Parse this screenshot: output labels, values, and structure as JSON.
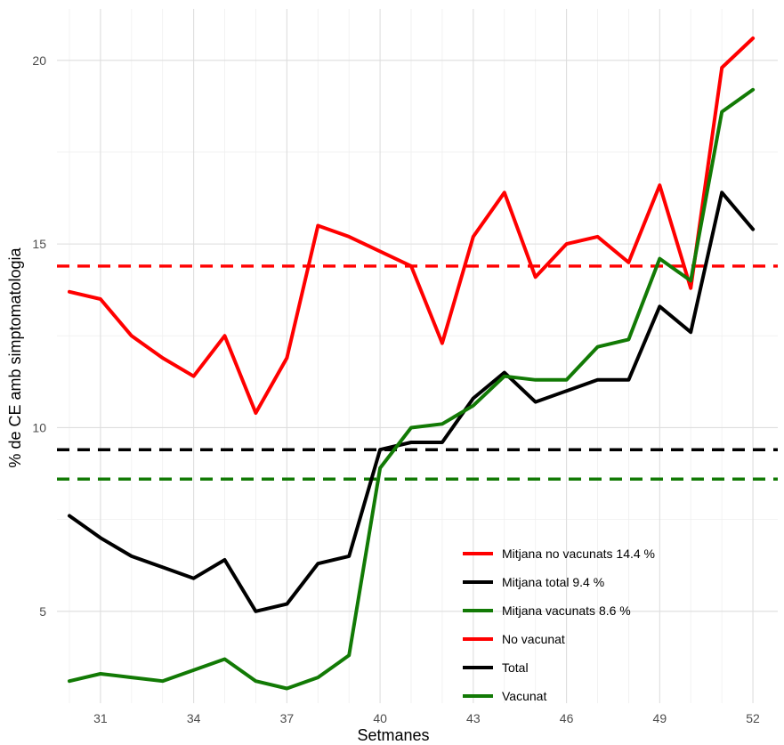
{
  "chart_data": {
    "type": "line",
    "xlabel": "Setmanes",
    "ylabel": "% de CE amb simptomatologia",
    "x_ticks": [
      31,
      34,
      37,
      40,
      43,
      46,
      49,
      52
    ],
    "y_ticks": [
      5,
      10,
      15,
      20
    ],
    "xlim": [
      29.6,
      52.8
    ],
    "ylim": [
      2.5,
      21.4
    ],
    "grid": true,
    "legend_position": "bottom-right",
    "x": [
      30,
      31,
      32,
      33,
      34,
      35,
      36,
      37,
      38,
      39,
      40,
      41,
      42,
      43,
      44,
      45,
      46,
      47,
      48,
      49,
      50,
      51,
      52
    ],
    "series": [
      {
        "name": "No vacunat",
        "color": "#ff0000",
        "values": [
          13.7,
          13.5,
          12.5,
          11.9,
          11.4,
          12.5,
          10.4,
          11.9,
          15.5,
          15.2,
          14.8,
          14.4,
          12.3,
          15.2,
          16.4,
          14.1,
          15.0,
          15.2,
          14.5,
          16.6,
          13.8,
          19.8,
          20.6
        ]
      },
      {
        "name": "Total",
        "color": "#000000",
        "values": [
          7.6,
          7.0,
          6.5,
          6.2,
          5.9,
          6.4,
          5.0,
          5.2,
          6.3,
          6.5,
          9.4,
          9.6,
          9.6,
          10.8,
          11.5,
          10.7,
          11.0,
          11.3,
          11.3,
          13.3,
          12.6,
          16.4,
          15.4
        ]
      },
      {
        "name": "Vacunat",
        "color": "#127a05",
        "values": [
          3.1,
          3.3,
          3.2,
          3.1,
          3.4,
          3.7,
          3.1,
          2.9,
          3.2,
          3.8,
          8.9,
          10.0,
          10.1,
          10.6,
          11.4,
          11.3,
          11.3,
          12.2,
          12.4,
          14.6,
          14.0,
          18.6,
          19.2
        ]
      }
    ],
    "reference_lines": [
      {
        "name": "Mitjana no vacunats 14.4 %",
        "value": 14.4,
        "color": "#ff0000"
      },
      {
        "name": "Mitjana total 9.4 %",
        "value": 9.4,
        "color": "#000000"
      },
      {
        "name": "Mitjana vacunats 8.6 %",
        "value": 8.6,
        "color": "#127a05"
      }
    ],
    "legend": [
      {
        "label": "Mitjana no vacunats 14.4 %",
        "color": "#ff0000"
      },
      {
        "label": "Mitjana total 9.4 %",
        "color": "#000000"
      },
      {
        "label": "Mitjana vacunats 8.6 %",
        "color": "#127a05"
      },
      {
        "label": "No vacunat",
        "color": "#ff0000"
      },
      {
        "label": "Total",
        "color": "#000000"
      },
      {
        "label": "Vacunat",
        "color": "#127a05"
      }
    ]
  }
}
